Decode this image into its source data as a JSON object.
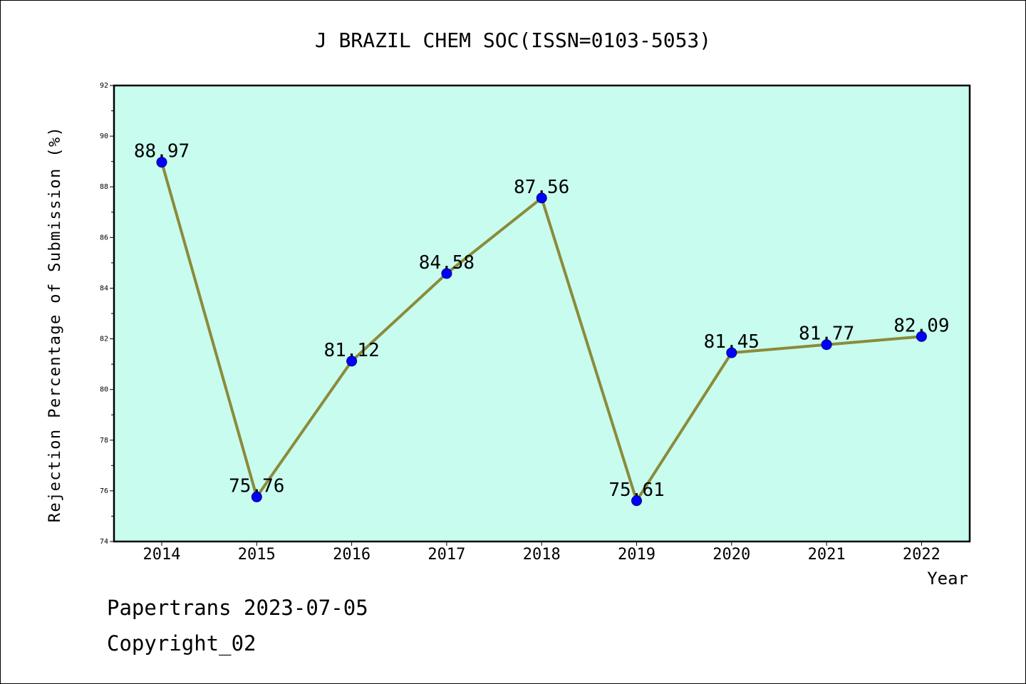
{
  "chart_data": {
    "type": "line",
    "title": "J BRAZIL CHEM SOC(ISSN=0103-5053)",
    "xlabel": "Year",
    "ylabel": "Rejection Percentage of Submission (%)",
    "categories": [
      "2014",
      "2015",
      "2016",
      "2017",
      "2018",
      "2019",
      "2020",
      "2021",
      "2022"
    ],
    "series": [
      {
        "values": [
          88.97,
          75.76,
          81.12,
          84.58,
          87.56,
          75.61,
          81.45,
          81.77,
          82.09
        ],
        "labels": [
          "88.97",
          "75.76",
          "81.12",
          "84.58",
          "87.56",
          "75.61",
          "81.45",
          "81.77",
          "82.09"
        ]
      }
    ],
    "ylim": [
      74,
      92
    ],
    "yticks": [
      74,
      76,
      78,
      80,
      82,
      84,
      86,
      88,
      90,
      92
    ],
    "ytick_labels": [
      "74",
      "76",
      "78",
      "80",
      "82",
      "84",
      "86",
      "88",
      "90",
      "92"
    ],
    "grid": false,
    "legend": "none",
    "colors": {
      "plot_background": "#c8fcee",
      "line": "#8b8b3a",
      "marker": "#0000ff",
      "axes": "#000000"
    }
  },
  "footer": {
    "source": "Papertrans 2023-07-05",
    "copyright": "Copyright_02"
  }
}
